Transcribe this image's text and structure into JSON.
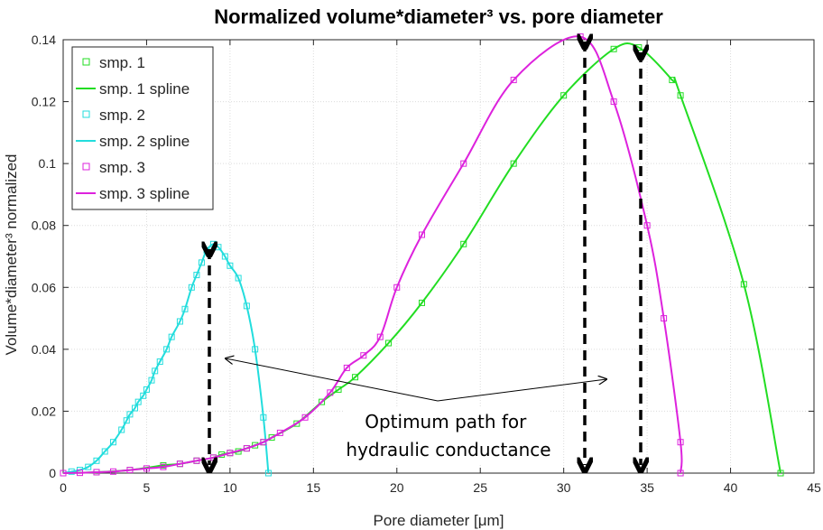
{
  "chart_data": {
    "type": "line",
    "title": "Normalized volume*diameter³ vs. pore diameter",
    "xlabel": "Pore diameter [μm]",
    "ylabel": "Volume*diameter³ normalized",
    "xlim": [
      0,
      45
    ],
    "ylim": [
      0,
      0.14
    ],
    "xticks": [
      "0",
      "5",
      "10",
      "15",
      "20",
      "25",
      "30",
      "35",
      "40",
      "45"
    ],
    "yticks": [
      "0",
      "0.02",
      "0.04",
      "0.06",
      "0.08",
      "0.1",
      "0.12",
      "0.14"
    ],
    "grid": true,
    "legend_position": "top-left",
    "legend": [
      "smp. 1",
      "smp. 1 spline",
      "smp. 2",
      "smp. 2 spline",
      "smp. 3",
      "smp. 3 spline"
    ],
    "series": [
      {
        "name": "smp. 1",
        "color": "#22dd22",
        "points": [
          [
            0,
            0
          ],
          [
            2,
            0.0003
          ],
          [
            4,
            0.001
          ],
          [
            6,
            0.0025
          ],
          [
            7,
            0.003
          ],
          [
            8,
            0.004
          ],
          [
            9,
            0.005
          ],
          [
            9.5,
            0.006
          ],
          [
            10,
            0.0065
          ],
          [
            10.5,
            0.007
          ],
          [
            11,
            0.008
          ],
          [
            11.5,
            0.009
          ],
          [
            12,
            0.01
          ],
          [
            12.5,
            0.0115
          ],
          [
            14,
            0.016
          ],
          [
            15.5,
            0.023
          ],
          [
            16.5,
            0.027
          ],
          [
            17.5,
            0.031
          ],
          [
            19.5,
            0.042
          ],
          [
            21.5,
            0.055
          ],
          [
            24,
            0.074
          ],
          [
            27,
            0.1
          ],
          [
            30,
            0.122
          ],
          [
            33,
            0.137
          ],
          [
            34.5,
            0.1375
          ],
          [
            36.5,
            0.127
          ],
          [
            37,
            0.122
          ],
          [
            40.8,
            0.061
          ],
          [
            43,
            0
          ]
        ]
      },
      {
        "name": "smp. 2",
        "color": "#22dddd",
        "points": [
          [
            0,
            0
          ],
          [
            0.5,
            0.0005
          ],
          [
            1,
            0.001
          ],
          [
            1.5,
            0.002
          ],
          [
            2,
            0.004
          ],
          [
            2.5,
            0.007
          ],
          [
            3,
            0.01
          ],
          [
            3.5,
            0.014
          ],
          [
            3.8,
            0.017
          ],
          [
            4,
            0.019
          ],
          [
            4.3,
            0.021
          ],
          [
            4.5,
            0.023
          ],
          [
            4.8,
            0.025
          ],
          [
            5,
            0.027
          ],
          [
            5.3,
            0.03
          ],
          [
            5.5,
            0.033
          ],
          [
            5.8,
            0.036
          ],
          [
            6.2,
            0.04
          ],
          [
            6.5,
            0.044
          ],
          [
            7,
            0.049
          ],
          [
            7.3,
            0.053
          ],
          [
            7.7,
            0.06
          ],
          [
            8,
            0.064
          ],
          [
            8.3,
            0.068
          ],
          [
            8.6,
            0.072
          ],
          [
            9,
            0.074
          ],
          [
            9.3,
            0.073
          ],
          [
            9.7,
            0.07
          ],
          [
            10,
            0.067
          ],
          [
            10.5,
            0.063
          ],
          [
            11,
            0.054
          ],
          [
            11.5,
            0.04
          ],
          [
            12,
            0.018
          ],
          [
            12.3,
            0
          ]
        ]
      },
      {
        "name": "smp. 3",
        "color": "#dd22dd",
        "points": [
          [
            0,
            0
          ],
          [
            1,
            0.0001
          ],
          [
            2,
            0.0003
          ],
          [
            3,
            0.0005
          ],
          [
            4,
            0.001
          ],
          [
            5,
            0.0015
          ],
          [
            6,
            0.002
          ],
          [
            7,
            0.003
          ],
          [
            8,
            0.004
          ],
          [
            9,
            0.005
          ],
          [
            10,
            0.0065
          ],
          [
            11,
            0.008
          ],
          [
            12,
            0.01
          ],
          [
            13,
            0.013
          ],
          [
            14.5,
            0.018
          ],
          [
            16,
            0.026
          ],
          [
            17,
            0.034
          ],
          [
            18,
            0.038
          ],
          [
            19,
            0.044
          ],
          [
            20,
            0.06
          ],
          [
            21.5,
            0.077
          ],
          [
            24,
            0.1
          ],
          [
            27,
            0.127
          ],
          [
            31,
            0.141
          ],
          [
            33,
            0.12
          ],
          [
            35,
            0.08
          ],
          [
            36,
            0.05
          ],
          [
            37,
            0.01
          ],
          [
            37,
            0
          ]
        ]
      }
    ],
    "annotation": "Optimum path for hydraulic conductance"
  }
}
